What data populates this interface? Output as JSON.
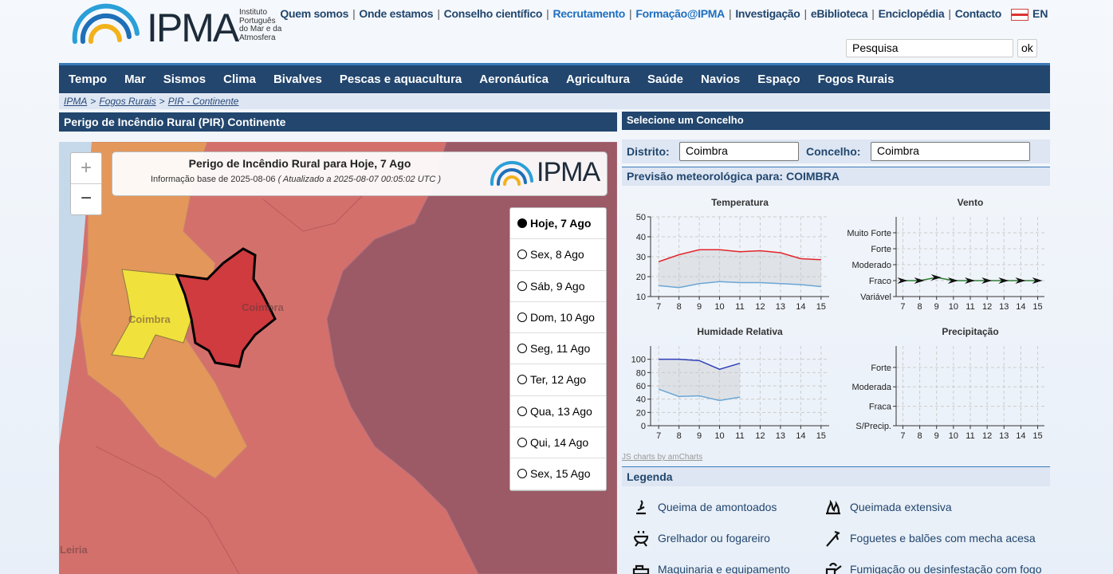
{
  "header": {
    "logo": "IPMA",
    "institute": [
      "Instituto",
      "Português",
      "do Mar e da",
      "Atmosfera"
    ],
    "links": [
      "Quem somos",
      "Onde estamos",
      "Conselho científico",
      "Recrutamento",
      "Formação@IPMA",
      "Investigação",
      "eBiblioteca",
      "Enciclopédia",
      "Contacto"
    ],
    "separator": "|",
    "language": "EN",
    "search": {
      "placeholder": "Pesquisa",
      "button": "ok"
    }
  },
  "nav": [
    "Tempo",
    "Mar",
    "Sismos",
    "Clima",
    "Bivalves",
    "Pescas e aquacultura",
    "Aeronáutica",
    "Agricultura",
    "Saúde",
    "Navios",
    "Espaço",
    "Fogos Rurais"
  ],
  "breadcrumb": {
    "items": [
      "IPMA",
      "Fogos Rurais",
      "PIR - Continente"
    ],
    "separator": ">"
  },
  "left": {
    "title": "Perigo de Incêndio Rural (PIR) Continente",
    "zoom_in": "+",
    "zoom_out": "−",
    "info": {
      "title": "Perigo de Incêndio Rural para Hoje, 7 Ago",
      "base": "Informação base de 2025-08-06",
      "updated": "( Atualizado a 2025-08-07 00:05:02 UTC )",
      "logo": "IPMA"
    },
    "days": [
      "Hoje, 7 Ago",
      "Sex, 8 Ago",
      "Sáb, 9 Ago",
      "Dom, 10 Ago",
      "Seg, 11 Ago",
      "Ter, 12 Ago",
      "Qua, 13 Ago",
      "Qui, 14 Ago",
      "Sex, 15 Ago"
    ],
    "selected_day": 0,
    "places": [
      "Coimbra",
      "Coimbra",
      "Leiria"
    ]
  },
  "right": {
    "title": "Selecione um Concelho",
    "district_label": "Distrito:",
    "district": "Coimbra",
    "municipality_label": "Concelho:",
    "municipality": "Coimbra",
    "forecast_title": "Previsão meteorológica para: COIMBRA",
    "charts": [
      {
        "type": "line",
        "title": "Temperatura",
        "x": [
          7,
          8,
          9,
          10,
          11,
          12,
          13,
          14,
          15
        ],
        "xlim": [
          6.6,
          15.4
        ],
        "xticks": [
          7,
          8,
          9,
          10,
          11,
          12,
          13,
          14,
          15
        ],
        "ylim": [
          10,
          50
        ],
        "yticks": [
          10,
          20,
          30,
          40,
          50
        ],
        "grid": true,
        "band": true,
        "series": [
          {
            "color": "#e0262b",
            "values": [
              27.5,
              31,
              33.5,
              33.5,
              32.5,
              33,
              32,
              29,
              28.5
            ]
          },
          {
            "color": "#6aa6d6",
            "values": [
              15.5,
              14.5,
              16.5,
              17.5,
              17,
              17,
              16.5,
              16,
              15
            ]
          }
        ]
      },
      {
        "type": "line",
        "title": "Vento",
        "x": [
          7,
          8,
          9,
          10,
          11,
          12,
          13,
          14,
          15
        ],
        "xlim": [
          6.6,
          15.4
        ],
        "xticks": [
          7,
          8,
          9,
          10,
          11,
          12,
          13,
          14,
          15
        ],
        "ylim": [
          0,
          5
        ],
        "yticks": [
          {
            "value": 0,
            "label": "Variável"
          },
          {
            "value": 1,
            "label": "Fraco"
          },
          {
            "value": 2,
            "label": "Moderado"
          },
          {
            "value": 3,
            "label": "Forte"
          },
          {
            "value": 4,
            "label": "Muito Forte"
          }
        ],
        "grid": true,
        "markers": true,
        "series": [
          {
            "color": "#2e7d32",
            "values": [
              1,
              1,
              1.2,
              1,
              1,
              1,
              1,
              1,
              1
            ]
          }
        ]
      },
      {
        "type": "line",
        "title": "Humidade Relativa",
        "x": [
          7,
          8,
          9,
          10,
          11
        ],
        "xlim": [
          6.6,
          15.4
        ],
        "xticks": [
          7,
          8,
          9,
          10,
          11,
          12,
          13,
          14,
          15
        ],
        "ylim": [
          0,
          120
        ],
        "yticks": [
          0,
          20,
          40,
          60,
          80,
          100
        ],
        "grid": true,
        "band": true,
        "series": [
          {
            "color": "#2f3fb8",
            "values": [
              100,
              100,
              98,
              85,
              94
            ]
          },
          {
            "color": "#6aa6d6",
            "values": [
              55,
              44,
              45,
              38,
              43
            ]
          }
        ]
      },
      {
        "type": "line",
        "title": "Precipitação",
        "x": [],
        "xlim": [
          6.6,
          15.4
        ],
        "xticks": [
          7,
          8,
          9,
          10,
          11,
          12,
          13,
          14,
          15
        ],
        "ylim": [
          0,
          4.1
        ],
        "yticks": [
          {
            "value": 0,
            "label": "S/Precip."
          },
          {
            "value": 1,
            "label": "Fraca"
          },
          {
            "value": 2,
            "label": "Moderada"
          },
          {
            "value": 3,
            "label": "Forte"
          }
        ],
        "grid": true,
        "series": []
      }
    ],
    "credit": "JS charts by amCharts",
    "legend_title": "Legenda",
    "legend": [
      "Queima de amontoados",
      "Queimada extensiva",
      "Grelhador ou fogareiro",
      "Foguetes e balões com mecha acesa",
      "Maquinaria e equipamento",
      "Fumigação ou desinfestação com fogo"
    ]
  }
}
